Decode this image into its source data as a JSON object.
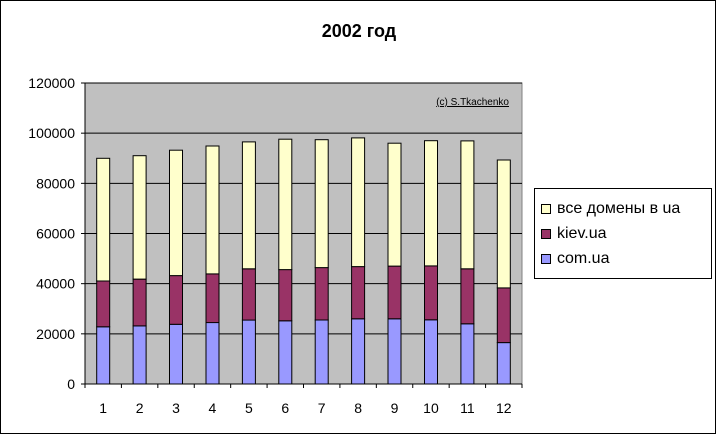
{
  "chart_data": {
    "type": "bar",
    "stacked": true,
    "title": "2002 год",
    "watermark": "(c) S.Tkachenko",
    "categories": [
      "1",
      "2",
      "3",
      "4",
      "5",
      "6",
      "7",
      "8",
      "9",
      "10",
      "11",
      "12"
    ],
    "ylim": [
      0,
      120000
    ],
    "yticks": [
      "0",
      "20000",
      "40000",
      "60000",
      "80000",
      "100000",
      "120000"
    ],
    "grid": true,
    "legend_position": "right",
    "series": [
      {
        "name": "com.ua",
        "color": "#9999ff",
        "values": [
          22800,
          23200,
          23800,
          24500,
          25500,
          25200,
          25500,
          26000,
          26000,
          25600,
          24000,
          16500
        ]
      },
      {
        "name": "kiev.ua",
        "color": "#993366",
        "values": [
          18300,
          18600,
          19400,
          19400,
          20400,
          20400,
          20900,
          20800,
          21000,
          21500,
          21900,
          21800
        ]
      },
      {
        "name": "все домены в ua",
        "color": "#ffffcc",
        "values": [
          48900,
          49200,
          50000,
          51000,
          50600,
          52000,
          51000,
          51300,
          49000,
          49900,
          51000,
          51000
        ]
      }
    ],
    "legend": [
      {
        "name": "все домены в ua",
        "color": "#ffffcc"
      },
      {
        "name": "kiev.ua",
        "color": "#993366"
      },
      {
        "name": "com.ua",
        "color": "#9999ff"
      }
    ]
  }
}
